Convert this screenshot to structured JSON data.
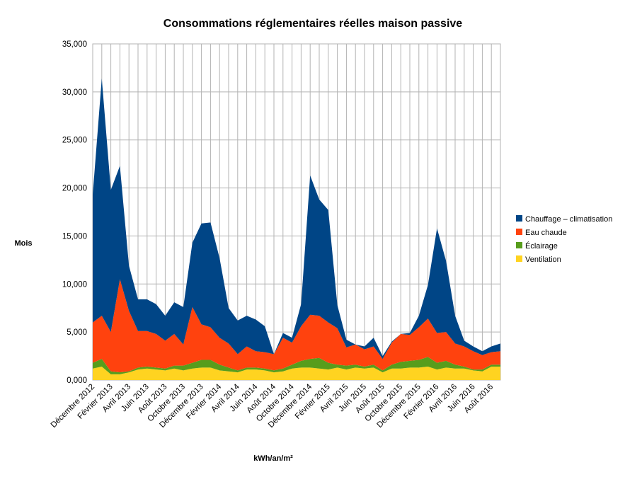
{
  "chart_data": {
    "type": "area",
    "stacked": true,
    "title": "Consommations réglementaires réelles maison passive",
    "xlabel": "kWh/an/m²",
    "ylabel": "Mois",
    "ylim": [
      0,
      35000
    ],
    "yticks": [
      "0,000",
      "5,000",
      "10,000",
      "15,000",
      "20,000",
      "25,000",
      "30,000",
      "35,000"
    ],
    "ytick_values": [
      0,
      5000,
      10000,
      15000,
      20000,
      25000,
      30000,
      35000
    ],
    "grid": true,
    "legend_position": "right",
    "categories": [
      "Décembre 2012",
      "Janvier 2013",
      "Février 2013",
      "Mars 2013",
      "Avril 2013",
      "Mai 2013",
      "Juin 2013",
      "Juillet 2013",
      "Août 2013",
      "Septembre 2013",
      "Octobre 2013",
      "Novembre 2013",
      "Décembre 2013",
      "Janvier 2014",
      "Février 2014",
      "Mars 2014",
      "Avril 2014",
      "Mai 2014",
      "Juin 2014",
      "Juillet 2014",
      "Août 2014",
      "Septembre 2014",
      "Octobre 2014",
      "Novembre 2014",
      "Décembre 2014",
      "Janvier 2015",
      "Février 2015",
      "Mars 2015",
      "Avril 2015",
      "Mai 2015",
      "Juin 2015",
      "Juillet 2015",
      "Août 2015",
      "Septembre 2015",
      "Octobre 2015",
      "Novembre 2015",
      "Décembre 2015",
      "Janvier 2016",
      "Février 2016",
      "Mars 2016",
      "Avril 2016",
      "Mai 2016",
      "Juin 2016",
      "Juillet 2016",
      "Août 2016",
      "Septembre 2016"
    ],
    "visible_tick_labels": [
      "Décembre 2012",
      "Février 2013",
      "Avril 2013",
      "Juin 2013",
      "Août 2013",
      "Octobre 2013",
      "Décembre 2013",
      "Février 2014",
      "Avril 2014",
      "Juin 2014",
      "Août 2014",
      "Octobre 2014",
      "Décembre 2014",
      "Février 2015",
      "Avril 2015",
      "Juin 2015",
      "Août 2015",
      "Octobre 2015",
      "Décembre 2015",
      "Février 2016",
      "Avril 2016",
      "Juin 2016",
      "Août 2016"
    ],
    "series": [
      {
        "name": "Ventilation",
        "color": "#ffd320",
        "values": [
          1200,
          1400,
          600,
          600,
          800,
          1100,
          1200,
          1100,
          1000,
          1200,
          1000,
          1200,
          1300,
          1300,
          1000,
          900,
          800,
          1100,
          1100,
          1000,
          800,
          900,
          1200,
          1300,
          1300,
          1200,
          1100,
          1300,
          1100,
          1300,
          1200,
          1300,
          800,
          1200,
          1200,
          1300,
          1300,
          1400,
          1100,
          1300,
          1200,
          1200,
          1000,
          900,
          1400,
          1400
        ]
      },
      {
        "name": "Éclairage",
        "color": "#579d1c",
        "values": [
          600,
          800,
          300,
          200,
          100,
          200,
          200,
          200,
          200,
          300,
          500,
          600,
          800,
          800,
          600,
          400,
          200,
          200,
          200,
          200,
          200,
          300,
          400,
          700,
          900,
          1100,
          700,
          300,
          400,
          300,
          200,
          300,
          200,
          400,
          700,
          700,
          800,
          1000,
          700,
          700,
          400,
          200,
          100,
          200,
          200,
          200
        ]
      },
      {
        "name": "Eau chaude",
        "color": "#ff420e",
        "values": [
          4200,
          4500,
          4100,
          9700,
          6300,
          3800,
          3700,
          3500,
          2900,
          3300,
          2200,
          5800,
          3700,
          3400,
          2800,
          2500,
          1700,
          2200,
          1700,
          1700,
          1700,
          3200,
          2300,
          3600,
          4600,
          4400,
          4200,
          3800,
          1900,
          2100,
          1800,
          1900,
          1200,
          2300,
          2900,
          2700,
          3400,
          4000,
          3100,
          3000,
          2200,
          2100,
          1900,
          1500,
          1300,
          1400
        ]
      },
      {
        "name": "Chauffage – climatisation",
        "color": "#004586",
        "values": [
          13300,
          24700,
          14800,
          11800,
          4700,
          3300,
          3300,
          3100,
          2600,
          3300,
          3900,
          6700,
          10500,
          10900,
          8300,
          3700,
          3500,
          3200,
          3300,
          2700,
          0,
          500,
          500,
          2300,
          14500,
          12100,
          11700,
          2400,
          800,
          0,
          300,
          900,
          300,
          100,
          0,
          200,
          1200,
          3500,
          10900,
          7400,
          2900,
          600,
          500,
          400,
          600,
          800
        ]
      }
    ]
  }
}
